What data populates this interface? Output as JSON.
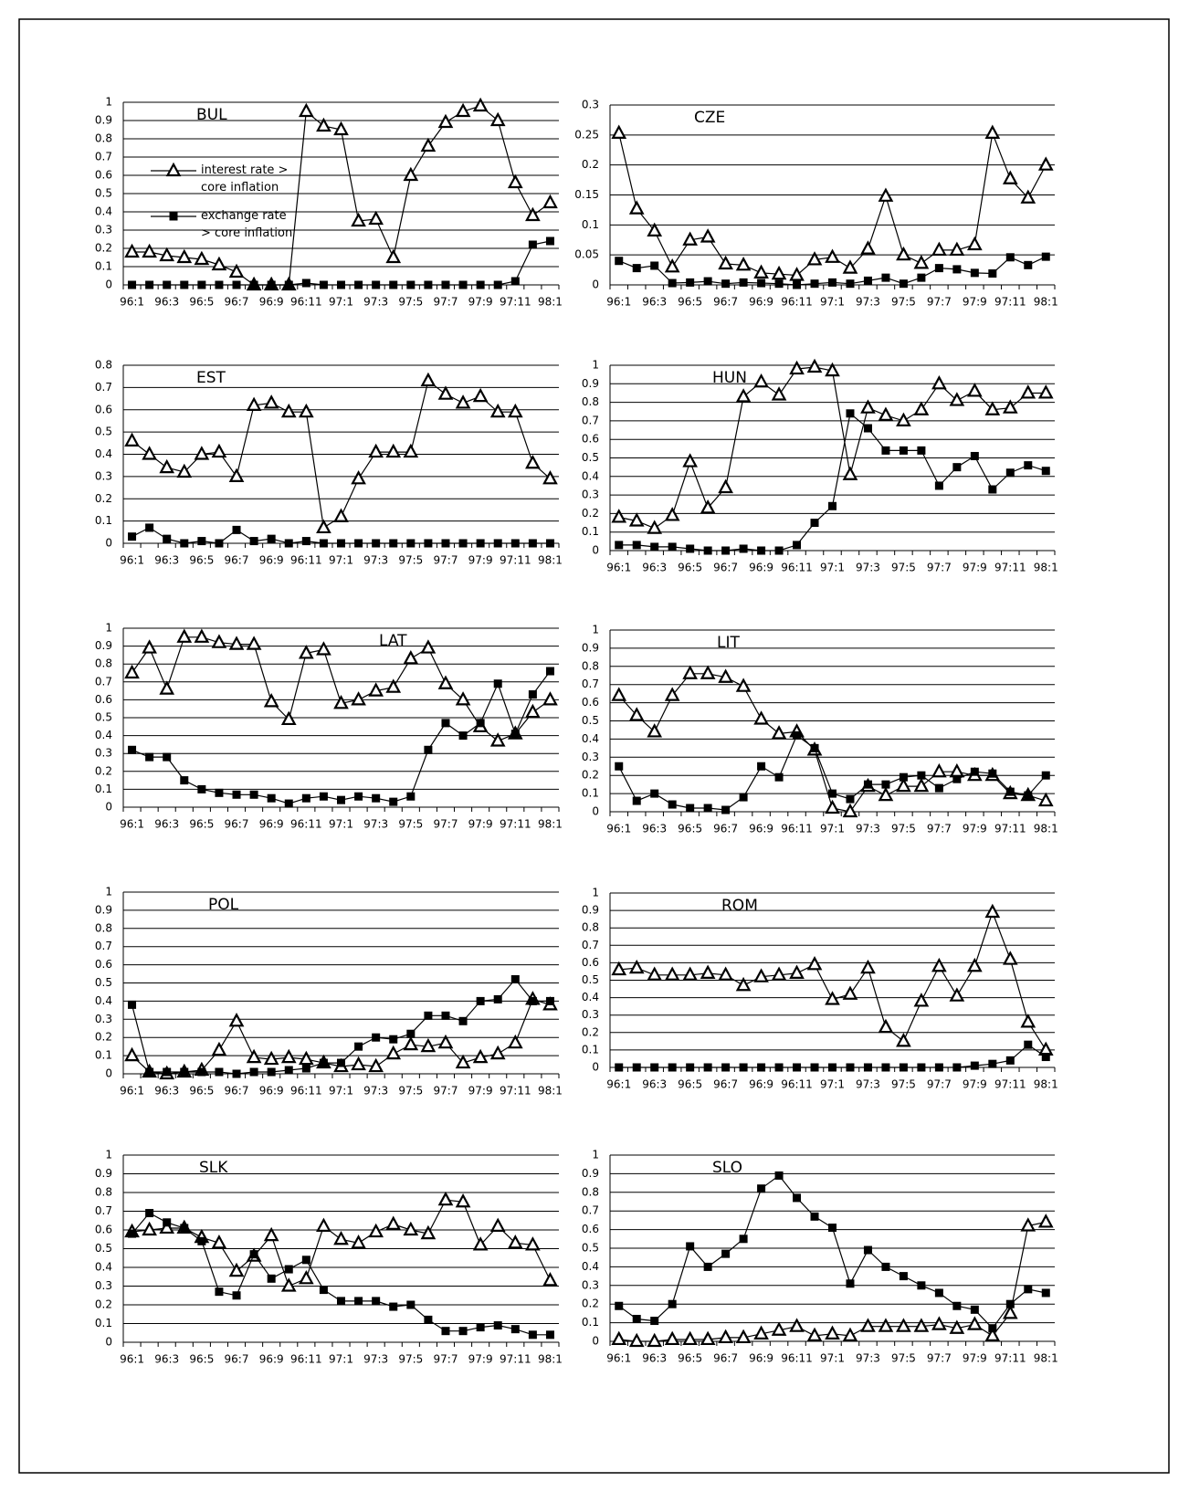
{
  "chart_data": [
    {
      "type": "line",
      "title": "BUL",
      "categories": [
        "96:1",
        null,
        "96:3",
        null,
        "96:5",
        null,
        "96:7",
        null,
        "96:9",
        null,
        "96:11",
        null,
        "97:1",
        null,
        "97:3",
        null,
        "97:5",
        null,
        "97:7",
        null,
        "97:9",
        null,
        "97:11",
        null,
        "98:1"
      ],
      "ylim": [
        0,
        1
      ],
      "yticks": [
        0,
        0.1,
        0.2,
        0.3,
        0.4,
        0.5,
        0.6,
        0.7,
        0.8,
        0.9,
        1
      ],
      "grid": true,
      "legend": true,
      "series": [
        {
          "name": "interest rate > core inflation",
          "color": "#000000",
          "marker": "triangle",
          "values": [
            0.18,
            0.18,
            0.16,
            0.15,
            0.14,
            0.11,
            0.07,
            0,
            0,
            0,
            0.95,
            0.87,
            0.85,
            0.35,
            0.36,
            0.15,
            0.6,
            0.76,
            0.89,
            0.95,
            0.98,
            0.9,
            0.56,
            0.38,
            0.45
          ]
        },
        {
          "name": "exchange rate > core inflation",
          "color": "#000000",
          "marker": "square",
          "values": [
            0,
            0,
            0,
            0,
            0,
            0,
            0,
            0,
            0,
            0,
            0.01,
            0,
            0,
            0,
            0,
            0,
            0,
            0,
            0,
            0,
            0,
            0,
            0.02,
            0.22,
            0.24
          ]
        }
      ]
    },
    {
      "type": "line",
      "title": "CZE",
      "categories": [
        "96:1",
        null,
        "96:3",
        null,
        "96:5",
        null,
        "96:7",
        null,
        "96:9",
        null,
        "96:11",
        null,
        "97:1",
        null,
        "97:3",
        null,
        "97:5",
        null,
        "97:7",
        null,
        "97:9",
        null,
        "97:11",
        null,
        "98:1"
      ],
      "ylim": [
        0,
        0.3
      ],
      "yticks": [
        0,
        0.05,
        0.1,
        0.15,
        0.2,
        0.25,
        0.3
      ],
      "grid": true,
      "legend": false,
      "series": [
        {
          "color": "#000000",
          "marker": "triangle",
          "values": [
            0.253,
            0.127,
            0.09,
            0.03,
            0.075,
            0.08,
            0.035,
            0.033,
            0.02,
            0.018,
            0.016,
            0.042,
            0.046,
            0.028,
            0.06,
            0.148,
            0.05,
            0.036,
            0.058,
            0.058,
            0.067,
            0.253,
            0.177,
            0.145,
            0.2
          ]
        },
        {
          "color": "#000000",
          "marker": "square",
          "values": [
            0.04,
            0.028,
            0.032,
            0.003,
            0.004,
            0.006,
            0.002,
            0.004,
            0.003,
            0.002,
            0,
            0.002,
            0.004,
            0.002,
            0.007,
            0.012,
            0.002,
            0.012,
            0.028,
            0.026,
            0.02,
            0.019,
            0.046,
            0.033,
            0.047
          ]
        }
      ]
    },
    {
      "type": "line",
      "title": "EST",
      "categories": [
        "96:1",
        null,
        "96:3",
        null,
        "96:5",
        null,
        "96:7",
        null,
        "96:9",
        null,
        "96:11",
        null,
        "97:1",
        null,
        "97:3",
        null,
        "97:5",
        null,
        "97:7",
        null,
        "97:9",
        null,
        "97:11",
        null,
        "98:1"
      ],
      "ylim": [
        0,
        0.8
      ],
      "yticks": [
        0,
        0.1,
        0.2,
        0.3,
        0.4,
        0.5,
        0.6,
        0.7,
        0.8
      ],
      "grid": true,
      "legend": false,
      "series": [
        {
          "color": "#000000",
          "marker": "triangle",
          "values": [
            0.46,
            0.4,
            0.34,
            0.32,
            0.4,
            0.41,
            0.3,
            0.62,
            0.63,
            0.59,
            0.59,
            0.07,
            0.12,
            0.29,
            0.41,
            0.41,
            0.41,
            0.73,
            0.67,
            0.63,
            0.66,
            0.59,
            0.59,
            0.36,
            0.29
          ]
        },
        {
          "color": "#000000",
          "marker": "square",
          "values": [
            0.03,
            0.07,
            0.02,
            0,
            0.01,
            0,
            0.06,
            0.01,
            0.02,
            0,
            0.01,
            0,
            0,
            0,
            0,
            0,
            0,
            0,
            0,
            0,
            0,
            0,
            0,
            0,
            0
          ]
        }
      ]
    },
    {
      "type": "line",
      "title": "HUN",
      "categories": [
        "96:1",
        null,
        "96:3",
        null,
        "96:5",
        null,
        "96:7",
        null,
        "96:9",
        null,
        "96:11",
        null,
        "97:1",
        null,
        "97:3",
        null,
        "97:5",
        null,
        "97:7",
        null,
        "97:9",
        null,
        "97:11",
        null,
        "98:1"
      ],
      "ylim": [
        0,
        1
      ],
      "yticks": [
        0,
        0.1,
        0.2,
        0.3,
        0.4,
        0.5,
        0.6,
        0.7,
        0.8,
        0.9,
        1
      ],
      "grid": true,
      "legend": false,
      "series": [
        {
          "color": "#000000",
          "marker": "triangle",
          "values": [
            0.18,
            0.16,
            0.12,
            0.19,
            0.48,
            0.23,
            0.34,
            0.83,
            0.91,
            0.84,
            0.98,
            0.99,
            0.97,
            0.41,
            0.77,
            0.73,
            0.7,
            0.76,
            0.9,
            0.81,
            0.86,
            0.76,
            0.77,
            0.85,
            0.85
          ]
        },
        {
          "color": "#000000",
          "marker": "square",
          "values": [
            0.03,
            0.03,
            0.02,
            0.02,
            0.01,
            0,
            0,
            0.01,
            0,
            0,
            0.03,
            0.15,
            0.24,
            0.74,
            0.66,
            0.54,
            0.54,
            0.54,
            0.35,
            0.45,
            0.51,
            0.33,
            0.42,
            0.46,
            0.43
          ]
        }
      ]
    },
    {
      "type": "line",
      "title": "LAT",
      "categories": [
        "96:1",
        null,
        "96:3",
        null,
        "96:5",
        null,
        "96:7",
        null,
        "96:9",
        null,
        "96:11",
        null,
        "97:1",
        null,
        "97:3",
        null,
        "97:5",
        null,
        "97:7",
        null,
        "97:9",
        null,
        "97:11",
        null,
        "98:1"
      ],
      "ylim": [
        0,
        1
      ],
      "yticks": [
        0,
        0.1,
        0.2,
        0.3,
        0.4,
        0.5,
        0.6,
        0.7,
        0.8,
        0.9,
        1
      ],
      "grid": true,
      "legend": false,
      "series": [
        {
          "color": "#000000",
          "marker": "triangle",
          "values": [
            0.75,
            0.89,
            0.66,
            0.95,
            0.95,
            0.92,
            0.91,
            0.91,
            0.59,
            0.49,
            0.86,
            0.88,
            0.58,
            0.6,
            0.65,
            0.67,
            0.83,
            0.89,
            0.69,
            0.6,
            0.45,
            0.37,
            0.41,
            0.53,
            0.6
          ]
        },
        {
          "color": "#000000",
          "marker": "square",
          "values": [
            0.32,
            0.28,
            0.28,
            0.15,
            0.1,
            0.08,
            0.07,
            0.07,
            0.05,
            0.02,
            0.05,
            0.06,
            0.04,
            0.06,
            0.05,
            0.03,
            0.06,
            0.32,
            0.47,
            0.4,
            0.47,
            0.69,
            0.41,
            0.63,
            0.76
          ]
        }
      ]
    },
    {
      "type": "line",
      "title": "LIT",
      "categories": [
        "96:1",
        null,
        "96:3",
        null,
        "96:5",
        null,
        "96:7",
        null,
        "96:9",
        null,
        "96:11",
        null,
        "97:1",
        null,
        "97:3",
        null,
        "97:5",
        null,
        "97:7",
        null,
        "97:9",
        null,
        "97:11",
        null,
        "98:1"
      ],
      "ylim": [
        0,
        1
      ],
      "yticks": [
        0,
        0.1,
        0.2,
        0.3,
        0.4,
        0.5,
        0.6,
        0.7,
        0.8,
        0.9,
        1
      ],
      "grid": true,
      "legend": false,
      "series": [
        {
          "color": "#000000",
          "marker": "triangle",
          "values": [
            0.64,
            0.53,
            0.44,
            0.64,
            0.76,
            0.76,
            0.74,
            0.69,
            0.51,
            0.43,
            0.44,
            0.34,
            0.02,
            0,
            0.14,
            0.09,
            0.14,
            0.14,
            0.22,
            0.22,
            0.2,
            0.2,
            0.1,
            0.09,
            0.06
          ]
        },
        {
          "color": "#000000",
          "marker": "square",
          "values": [
            0.25,
            0.06,
            0.1,
            0.04,
            0.02,
            0.02,
            0.01,
            0.08,
            0.25,
            0.19,
            0.42,
            0.35,
            0.1,
            0.07,
            0.15,
            0.15,
            0.19,
            0.2,
            0.13,
            0.18,
            0.22,
            0.21,
            0.11,
            0.09,
            0.2
          ]
        }
      ]
    },
    {
      "type": "line",
      "title": "POL",
      "categories": [
        "96:1",
        null,
        "96:3",
        null,
        "96:5",
        null,
        "96:7",
        null,
        "96:9",
        null,
        "96:11",
        null,
        "97:1",
        null,
        "97:3",
        null,
        "97:5",
        null,
        "97:7",
        null,
        "97:9",
        null,
        "97:11",
        null,
        "98:1"
      ],
      "ylim": [
        0,
        1
      ],
      "yticks": [
        0,
        0.1,
        0.2,
        0.3,
        0.4,
        0.5,
        0.6,
        0.7,
        0.8,
        0.9,
        1
      ],
      "grid": true,
      "legend": false,
      "series": [
        {
          "color": "#000000",
          "marker": "triangle",
          "values": [
            0.1,
            0.01,
            0,
            0.01,
            0.02,
            0.13,
            0.29,
            0.09,
            0.08,
            0.09,
            0.08,
            0.06,
            0.04,
            0.05,
            0.04,
            0.11,
            0.16,
            0.15,
            0.17,
            0.06,
            0.09,
            0.11,
            0.17,
            0.41,
            0.38
          ]
        },
        {
          "color": "#000000",
          "marker": "square",
          "values": [
            0.38,
            0.01,
            0.01,
            0.01,
            0.01,
            0.01,
            0,
            0.01,
            0.01,
            0.02,
            0.03,
            0.06,
            0.06,
            0.15,
            0.2,
            0.19,
            0.22,
            0.32,
            0.32,
            0.29,
            0.4,
            0.41,
            0.52,
            0.4,
            0.4
          ]
        }
      ]
    },
    {
      "type": "line",
      "title": "ROM",
      "categories": [
        "96:1",
        null,
        "96:3",
        null,
        "96:5",
        null,
        "96:7",
        null,
        "96:9",
        null,
        "96:11",
        null,
        "97:1",
        null,
        "97:3",
        null,
        "97:5",
        null,
        "97:7",
        null,
        "97:9",
        null,
        "97:11",
        null,
        "98:1"
      ],
      "ylim": [
        0,
        1
      ],
      "yticks": [
        0,
        0.1,
        0.2,
        0.3,
        0.4,
        0.5,
        0.6,
        0.7,
        0.8,
        0.9,
        1
      ],
      "grid": true,
      "legend": false,
      "series": [
        {
          "color": "#000000",
          "marker": "triangle",
          "values": [
            0.56,
            0.57,
            0.53,
            0.53,
            0.53,
            0.54,
            0.53,
            0.47,
            0.52,
            0.53,
            0.54,
            0.59,
            0.39,
            0.42,
            0.57,
            0.23,
            0.15,
            0.38,
            0.58,
            0.41,
            0.58,
            0.89,
            0.62,
            0.26,
            0.1
          ]
        },
        {
          "color": "#000000",
          "marker": "square",
          "values": [
            0,
            0,
            0,
            0,
            0,
            0,
            0,
            0,
            0,
            0,
            0,
            0,
            0,
            0,
            0,
            0,
            0,
            0,
            0,
            0,
            0.01,
            0.02,
            0.04,
            0.13,
            0.06
          ]
        }
      ]
    },
    {
      "type": "line",
      "title": "SLK",
      "categories": [
        "96:1",
        null,
        "96:3",
        null,
        "96:5",
        null,
        "96:7",
        null,
        "96:9",
        null,
        "96:11",
        null,
        "97:1",
        null,
        "97:3",
        null,
        "97:5",
        null,
        "97:7",
        null,
        "97:9",
        null,
        "97:11",
        null,
        "98:1"
      ],
      "ylim": [
        0,
        1
      ],
      "yticks": [
        0,
        0.1,
        0.2,
        0.3,
        0.4,
        0.5,
        0.6,
        0.7,
        0.8,
        0.9,
        1
      ],
      "grid": true,
      "legend": false,
      "series": [
        {
          "color": "#000000",
          "marker": "triangle",
          "values": [
            0.59,
            0.6,
            0.61,
            0.61,
            0.56,
            0.53,
            0.38,
            0.46,
            0.57,
            0.3,
            0.34,
            0.62,
            0.55,
            0.53,
            0.59,
            0.63,
            0.6,
            0.58,
            0.76,
            0.75,
            0.52,
            0.62,
            0.53,
            0.52,
            0.33
          ]
        },
        {
          "color": "#000000",
          "marker": "square",
          "values": [
            0.58,
            0.69,
            0.64,
            0.61,
            0.54,
            0.27,
            0.25,
            0.47,
            0.34,
            0.39,
            0.44,
            0.28,
            0.22,
            0.22,
            0.22,
            0.19,
            0.2,
            0.12,
            0.06,
            0.06,
            0.08,
            0.09,
            0.07,
            0.04,
            0.04
          ]
        }
      ]
    },
    {
      "type": "line",
      "title": "SLO",
      "categories": [
        "96:1",
        null,
        "96:3",
        null,
        "96:5",
        null,
        "96:7",
        null,
        "96:9",
        null,
        "96:11",
        null,
        "97:1",
        null,
        "97:3",
        null,
        "97:5",
        null,
        "97:7",
        null,
        "97:9",
        null,
        "97:11",
        null,
        "98:1"
      ],
      "ylim": [
        0,
        1
      ],
      "yticks": [
        0,
        0.1,
        0.2,
        0.3,
        0.4,
        0.5,
        0.6,
        0.7,
        0.8,
        0.9,
        1
      ],
      "grid": true,
      "legend": false,
      "series": [
        {
          "color": "#000000",
          "marker": "triangle",
          "values": [
            0.01,
            0,
            0,
            0.01,
            0.01,
            0.01,
            0.02,
            0.02,
            0.04,
            0.06,
            0.08,
            0.03,
            0.04,
            0.03,
            0.08,
            0.08,
            0.08,
            0.08,
            0.09,
            0.07,
            0.09,
            0.03,
            0.15,
            0.62,
            0.64
          ]
        },
        {
          "color": "#000000",
          "marker": "square",
          "values": [
            0.19,
            0.12,
            0.11,
            0.2,
            0.51,
            0.4,
            0.47,
            0.55,
            0.82,
            0.89,
            0.77,
            0.67,
            0.61,
            0.31,
            0.49,
            0.4,
            0.35,
            0.3,
            0.26,
            0.19,
            0.17,
            0.07,
            0.2,
            0.28,
            0.26
          ]
        }
      ]
    }
  ]
}
